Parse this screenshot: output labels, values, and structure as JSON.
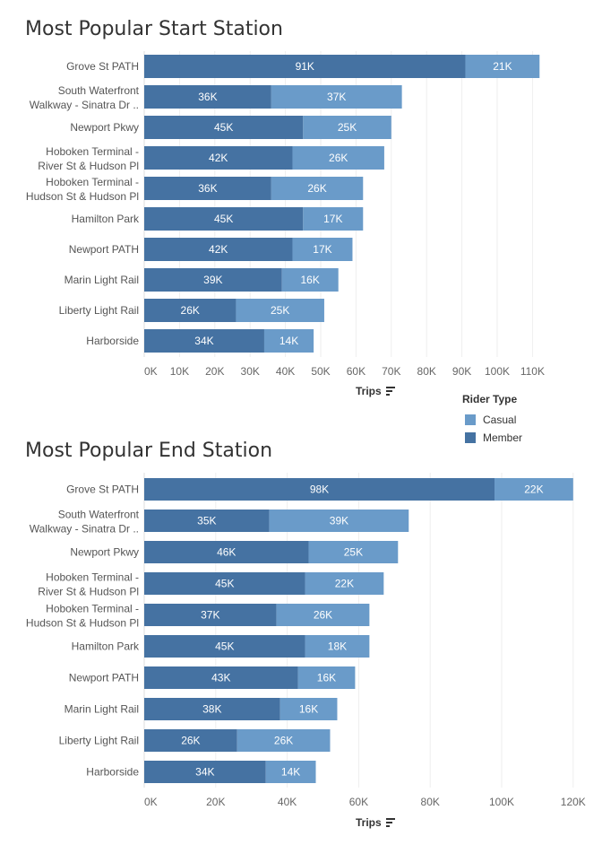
{
  "colors": {
    "member": "#4572A2",
    "casual": "#6A9BC9",
    "grid": "#eeeeee"
  },
  "legend": {
    "title": "Rider Type",
    "items": [
      {
        "label": "Casual",
        "color": "#6A9BC9"
      },
      {
        "label": "Member",
        "color": "#4572A2"
      }
    ]
  },
  "chart_data": [
    {
      "type": "bar",
      "orientation": "horizontal",
      "stacked": true,
      "title": "Most Popular Start Station",
      "xlabel": "Trips",
      "categories": [
        [
          "Grove St PATH"
        ],
        [
          "South Waterfront",
          "Walkway - Sinatra Dr .."
        ],
        [
          "Newport Pkwy"
        ],
        [
          "Hoboken Terminal -",
          "River St & Hudson Pl"
        ],
        [
          "Hoboken Terminal -",
          "Hudson St & Hudson Pl"
        ],
        [
          "Hamilton Park"
        ],
        [
          "Newport PATH"
        ],
        [
          "Marin Light Rail"
        ],
        [
          "Liberty Light Rail"
        ],
        [
          "Harborside"
        ]
      ],
      "series": [
        {
          "name": "Member",
          "values": [
            91,
            36,
            45,
            42,
            36,
            45,
            42,
            39,
            26,
            34
          ],
          "labels": [
            "91K",
            "36K",
            "45K",
            "42K",
            "36K",
            "45K",
            "42K",
            "39K",
            "26K",
            "34K"
          ]
        },
        {
          "name": "Casual",
          "values": [
            21,
            37,
            25,
            26,
            26,
            17,
            17,
            16,
            25,
            14
          ],
          "labels": [
            "21K",
            "37K",
            "25K",
            "26K",
            "26K",
            "17K",
            "17K",
            "16K",
            "25K",
            "14K"
          ]
        }
      ],
      "xlim": [
        0,
        117
      ],
      "ticks": [
        0,
        10,
        20,
        30,
        40,
        50,
        60,
        70,
        80,
        90,
        100,
        110
      ],
      "tick_labels": [
        "0K",
        "10K",
        "20K",
        "30K",
        "40K",
        "50K",
        "60K",
        "70K",
        "80K",
        "90K",
        "100K",
        "110K"
      ]
    },
    {
      "type": "bar",
      "orientation": "horizontal",
      "stacked": true,
      "title": "Most Popular End Station",
      "xlabel": "Trips",
      "categories": [
        [
          "Grove St PATH"
        ],
        [
          "South Waterfront",
          "Walkway - Sinatra Dr .."
        ],
        [
          "Newport Pkwy"
        ],
        [
          "Hoboken Terminal -",
          "River St & Hudson Pl"
        ],
        [
          "Hoboken Terminal -",
          "Hudson St & Hudson Pl"
        ],
        [
          "Hamilton Park"
        ],
        [
          "Newport PATH"
        ],
        [
          "Marin Light Rail"
        ],
        [
          "Liberty Light Rail"
        ],
        [
          "Harborside"
        ]
      ],
      "series": [
        {
          "name": "Member",
          "values": [
            98,
            35,
            46,
            45,
            37,
            45,
            43,
            38,
            26,
            34
          ],
          "labels": [
            "98K",
            "35K",
            "46K",
            "45K",
            "37K",
            "45K",
            "43K",
            "38K",
            "26K",
            "34K"
          ]
        },
        {
          "name": "Casual",
          "values": [
            22,
            39,
            25,
            22,
            26,
            18,
            16,
            16,
            26,
            14
          ],
          "labels": [
            "22K",
            "39K",
            "25K",
            "22K",
            "26K",
            "18K",
            "16K",
            "16K",
            "26K",
            "14K"
          ]
        }
      ],
      "xlim": [
        0,
        125
      ],
      "ticks": [
        0,
        20,
        40,
        60,
        80,
        100,
        120
      ],
      "tick_labels": [
        "0K",
        "20K",
        "40K",
        "60K",
        "80K",
        "100K",
        "120K"
      ]
    }
  ]
}
